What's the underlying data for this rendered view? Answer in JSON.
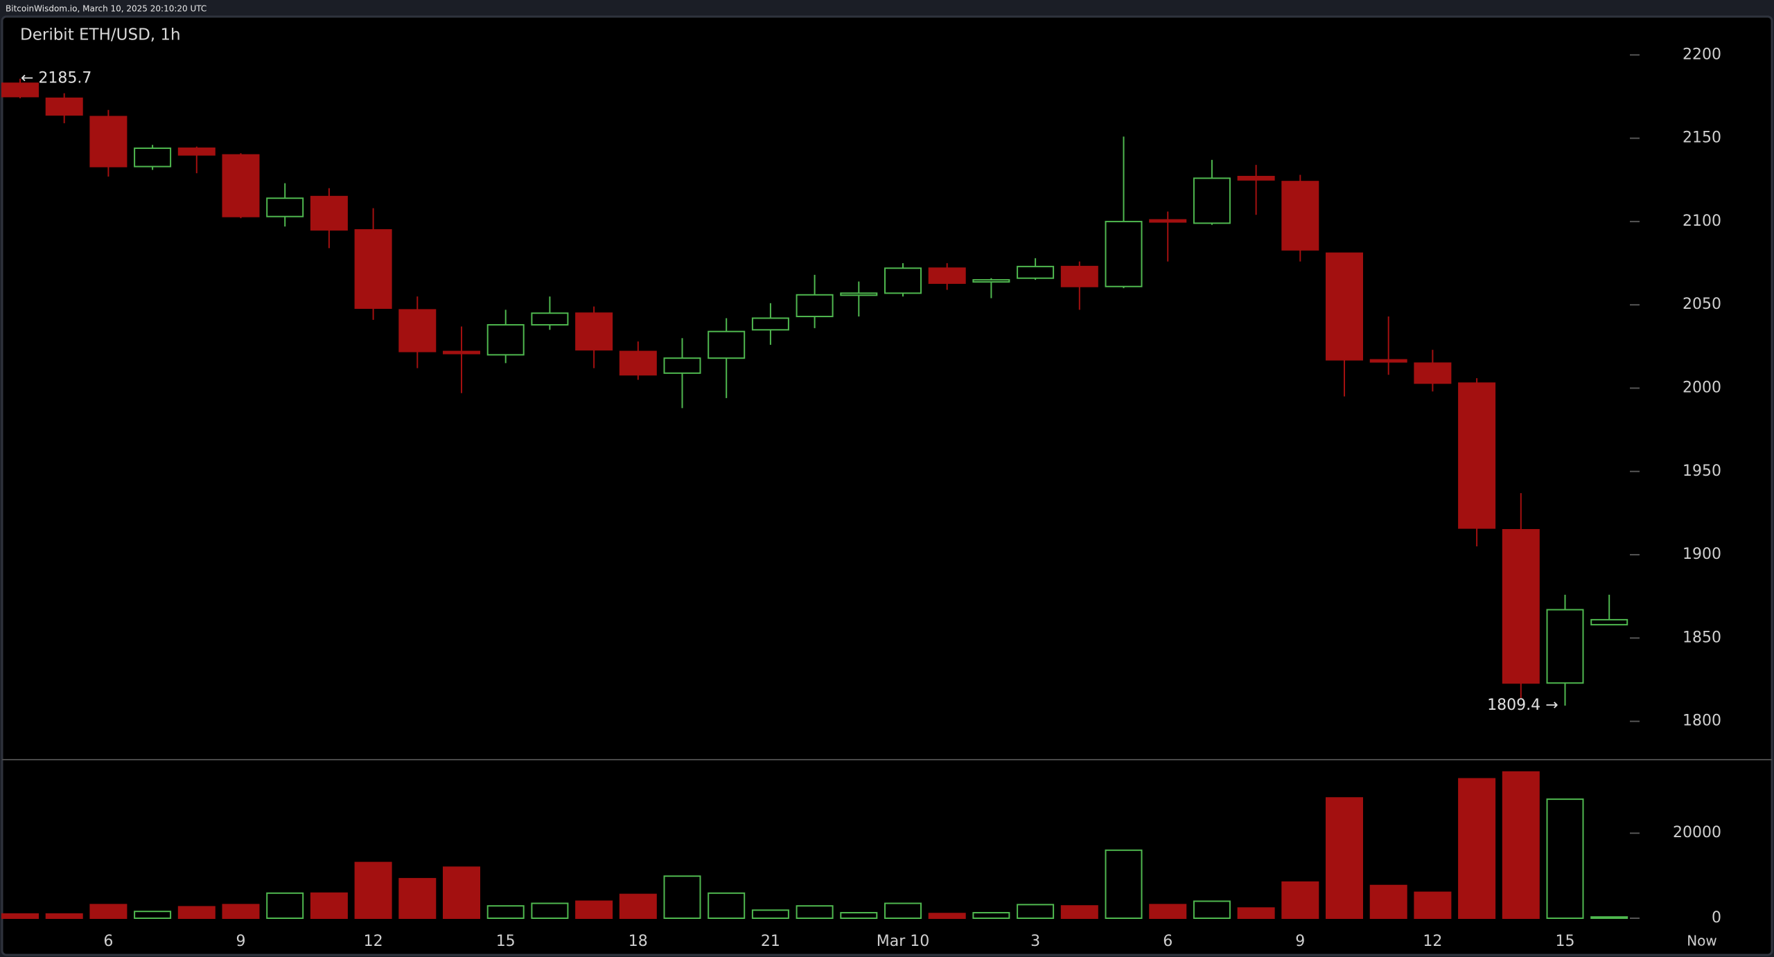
{
  "chart_data": {
    "type": "candlestick",
    "source": "BitcoinWisdom.io, March 10, 2025 20:10:20 UTC",
    "title": "Deribit ETH/USD, 1h",
    "categories": [
      null,
      null,
      "6",
      null,
      null,
      "9",
      null,
      null,
      "12",
      null,
      null,
      "15",
      null,
      null,
      "18",
      null,
      null,
      "21",
      null,
      null,
      "Mar 10",
      null,
      null,
      "3",
      null,
      null,
      "6",
      null,
      null,
      "9",
      null,
      null,
      "12",
      null,
      null,
      "15",
      null
    ],
    "end_label": "Now",
    "open": [
      2183,
      2174,
      2163,
      2133,
      2144,
      2140,
      2103,
      2115,
      2095,
      2047,
      2022,
      2020,
      2038,
      2045,
      2022,
      2009,
      2018,
      2035,
      2043,
      2056,
      2057,
      2072,
      2064,
      2066,
      2073,
      2061,
      2101,
      2099,
      2127,
      2124,
      2081,
      2017,
      2015,
      2003,
      1915,
      1823,
      1858
    ],
    "high": [
      2185.7,
      2177,
      2167,
      2146,
      2145,
      2141,
      2123,
      2120,
      2108,
      2055,
      2037,
      2047,
      2055,
      2049,
      2028,
      2030,
      2042,
      2051,
      2068,
      2064,
      2075,
      2075,
      2066,
      2078,
      2076,
      2151,
      2106,
      2137,
      2134,
      2128,
      2081,
      2043,
      2023,
      2006,
      1937,
      1876,
      1876
    ],
    "low": [
      2174,
      2159,
      2127,
      2131,
      2129,
      2102,
      2097,
      2084,
      2041,
      2012,
      1997,
      2015,
      2035,
      2012,
      2005,
      1988,
      1994,
      2026,
      2036,
      2043,
      2055,
      2059,
      2054,
      2065,
      2047,
      2060,
      2076,
      2098,
      2104,
      2076,
      1995,
      2008,
      1998,
      1905,
      1814,
      1809.4,
      1858
    ],
    "close": [
      2175,
      2164,
      2133,
      2144,
      2140,
      2103,
      2114,
      2095,
      2048,
      2022,
      2021,
      2038,
      2045,
      2023,
      2008,
      2018,
      2034,
      2042,
      2056,
      2057,
      2072,
      2063,
      2065,
      2073,
      2061,
      2100,
      2100,
      2126,
      2125,
      2083,
      2017,
      2016,
      2003,
      1916,
      1823,
      1867,
      1861
    ],
    "volume": [
      1000,
      1000,
      3200,
      1600,
      2700,
      3200,
      5900,
      5900,
      13100,
      9300,
      12000,
      2900,
      3500,
      4000,
      5600,
      9900,
      5900,
      1900,
      2900,
      1300,
      3500,
      1100,
      1300,
      3200,
      2900,
      16000,
      3200,
      4000,
      2400,
      8500,
      28300,
      7700,
      6100,
      32800,
      34400,
      28000,
      300
    ],
    "up_color": "#4fb84f",
    "down_color": "#a31010",
    "ylim": [
      1777,
      2223
    ],
    "yticks": [
      1800,
      1850,
      1900,
      1950,
      2000,
      2050,
      2100,
      2150,
      2200
    ],
    "volume_lim": [
      0,
      37300
    ],
    "volume_ticks": [
      0,
      20000
    ],
    "high_label": "← 2185.7",
    "low_label": "1809.4 →"
  }
}
